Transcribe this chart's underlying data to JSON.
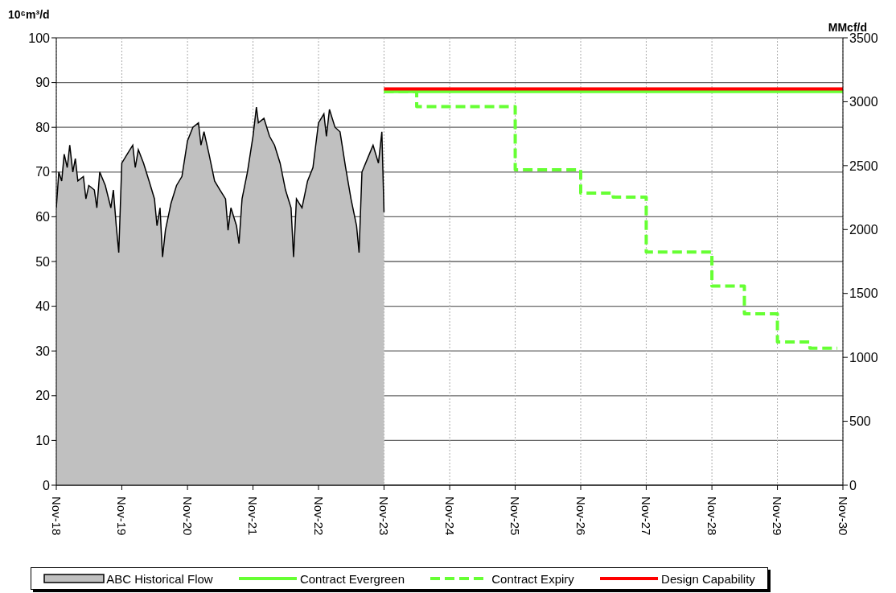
{
  "chart_data": {
    "type": "area",
    "ylabel": "10⁶m³/d",
    "y2label": "MMcf/d",
    "xlim": [
      "2018-11-01",
      "2030-11-01"
    ],
    "xticks": [
      {
        "value": "2018-11-01",
        "label": "Nov-18"
      },
      {
        "value": "2019-11-01",
        "label": "Nov-19"
      },
      {
        "value": "2020-11-01",
        "label": "Nov-20"
      },
      {
        "value": "2021-11-01",
        "label": "Nov-21"
      },
      {
        "value": "2022-11-01",
        "label": "Nov-22"
      },
      {
        "value": "2023-11-01",
        "label": "Nov-23"
      },
      {
        "value": "2024-11-01",
        "label": "Nov-24"
      },
      {
        "value": "2025-11-01",
        "label": "Nov-25"
      },
      {
        "value": "2026-11-01",
        "label": "Nov-26"
      },
      {
        "value": "2027-11-01",
        "label": "Nov-27"
      },
      {
        "value": "2028-11-01",
        "label": "Nov-28"
      },
      {
        "value": "2029-11-01",
        "label": "Nov-29"
      },
      {
        "value": "2030-11-01",
        "label": "Nov-30"
      }
    ],
    "ylim": [
      0,
      100
    ],
    "yticks": [
      0,
      10,
      20,
      30,
      40,
      50,
      60,
      70,
      80,
      90,
      100
    ],
    "y2lim": [
      0,
      3500
    ],
    "y2ticks": [
      0,
      500,
      1000,
      1500,
      2000,
      2500,
      3000,
      3500
    ],
    "grid": true,
    "legend": "bottom",
    "series": [
      {
        "name": "ABC Historical Flow",
        "color": "#c0c0c0",
        "x": [
          "2018-11-01",
          "2018-11-15",
          "2018-12-01",
          "2018-12-15",
          "2019-01-01",
          "2019-01-15",
          "2019-02-01",
          "2019-02-15",
          "2019-03-01",
          "2019-04-01",
          "2019-04-15",
          "2019-05-01",
          "2019-06-01",
          "2019-06-15",
          "2019-07-01",
          "2019-08-01",
          "2019-09-01",
          "2019-09-15",
          "2019-10-01",
          "2019-10-15",
          "2019-11-01",
          "2019-12-01",
          "2020-01-01",
          "2020-01-15",
          "2020-02-01",
          "2020-03-01",
          "2020-04-01",
          "2020-05-01",
          "2020-05-15",
          "2020-06-01",
          "2020-06-15",
          "2020-07-01",
          "2020-08-01",
          "2020-09-01",
          "2020-10-01",
          "2020-11-01",
          "2020-12-01",
          "2021-01-01",
          "2021-01-15",
          "2021-02-01",
          "2021-03-01",
          "2021-04-01",
          "2021-05-01",
          "2021-06-01",
          "2021-06-15",
          "2021-07-01",
          "2021-08-01",
          "2021-08-15",
          "2021-09-01",
          "2021-10-01",
          "2021-11-01",
          "2021-11-20",
          "2021-12-01",
          "2022-01-01",
          "2022-02-01",
          "2022-03-01",
          "2022-04-01",
          "2022-05-01",
          "2022-06-01",
          "2022-06-15",
          "2022-07-01",
          "2022-08-01",
          "2022-09-01",
          "2022-10-01",
          "2022-11-01",
          "2022-12-01",
          "2022-12-15",
          "2023-01-01",
          "2023-02-01",
          "2023-03-01",
          "2023-04-01",
          "2023-05-01",
          "2023-06-01",
          "2023-06-15",
          "2023-07-01",
          "2023-08-01",
          "2023-09-01",
          "2023-10-01",
          "2023-10-20",
          "2023-11-01"
        ],
        "values": [
          62,
          70,
          68,
          74,
          71,
          76,
          70,
          73,
          68,
          69,
          64,
          67,
          66,
          62,
          70,
          67,
          62,
          66,
          58,
          52,
          72,
          74,
          76,
          71,
          75,
          72,
          68,
          64,
          58,
          62,
          51,
          57,
          63,
          67,
          69,
          77,
          80,
          81,
          76,
          79,
          74,
          68,
          66,
          64,
          57,
          62,
          58,
          54,
          64,
          70,
          78,
          84.5,
          81,
          82,
          78,
          76,
          72,
          66,
          62,
          51,
          64,
          62,
          68,
          71,
          81,
          83,
          78,
          84,
          80,
          79,
          71,
          64,
          58,
          52,
          70,
          73,
          76,
          72,
          79,
          61
        ]
      },
      {
        "name": "Contract Evergreen",
        "type": "line",
        "color": "#66ff33",
        "line_style": "solid",
        "x": [
          "2023-11-01",
          "2030-11-01"
        ],
        "values": [
          88,
          88
        ]
      },
      {
        "name": "Contract Expiry",
        "type": "step",
        "color": "#66ff33",
        "line_style": "dashed",
        "x": [
          "2023-11-01",
          "2024-05-01",
          "2025-11-01",
          "2026-11-01",
          "2027-05-01",
          "2027-11-01",
          "2028-11-01",
          "2029-05-01",
          "2029-11-01",
          "2030-05-01",
          "2030-10-01"
        ],
        "values": [
          88,
          84.6,
          70.5,
          65.3,
          64.4,
          52.1,
          44.5,
          38.3,
          32,
          30.6,
          30.6
        ]
      },
      {
        "name": "Design Capability",
        "type": "line",
        "color": "#ff0000",
        "line_style": "solid",
        "x": [
          "2023-11-01",
          "2030-11-01"
        ],
        "values": [
          88.6,
          88.6
        ]
      }
    ]
  }
}
